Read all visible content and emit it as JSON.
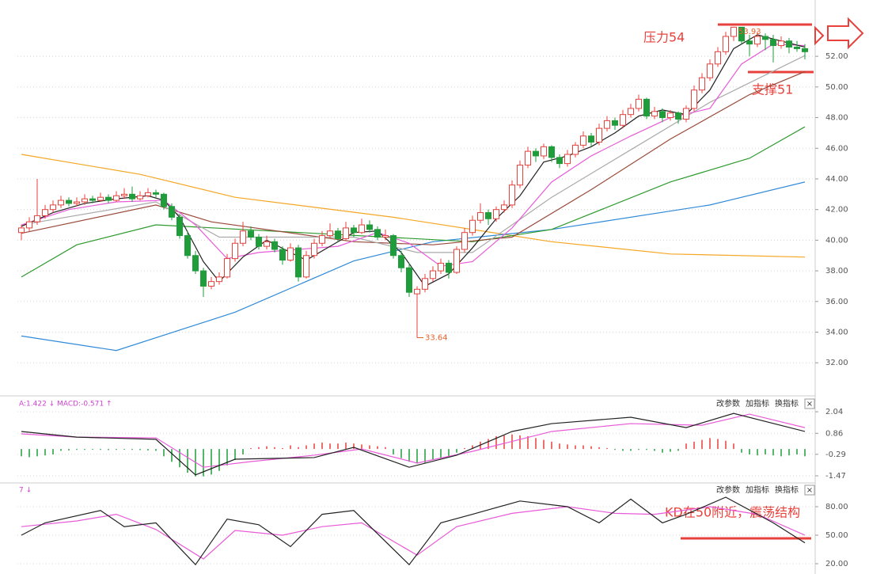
{
  "chart_data": [
    {
      "type": "candlestick",
      "up_color": "#e8413c",
      "down_color": "#1f9d3a",
      "ylim": [
        30.1,
        54.9
      ],
      "yticks": [
        {
          "value": 32,
          "label": "32.00"
        },
        {
          "value": 34,
          "label": "34.00"
        },
        {
          "value": 36,
          "label": "36.00"
        },
        {
          "value": 38,
          "label": "38.00"
        },
        {
          "value": 40,
          "label": "40.00"
        },
        {
          "value": 42,
          "label": "42.00"
        },
        {
          "value": 44,
          "label": "44.00"
        },
        {
          "value": 46,
          "label": "46.00"
        },
        {
          "value": 48,
          "label": "48.00"
        },
        {
          "value": 50,
          "label": "50.00"
        },
        {
          "value": 52,
          "label": "52.00"
        }
      ],
      "grid": true,
      "annotations": [
        "压力54",
        "支撑51"
      ],
      "high_label": "53.93",
      "low_label": "33.64",
      "candles": [
        [
          40.5,
          41.0,
          40.0,
          40.8
        ],
        [
          40.8,
          41.5,
          40.6,
          41.2
        ],
        [
          41.2,
          44.0,
          41.0,
          41.6
        ],
        [
          41.6,
          42.3,
          41.4,
          42.0
        ],
        [
          42.0,
          42.6,
          41.8,
          42.3
        ],
        [
          42.3,
          42.9,
          42.1,
          42.6
        ],
        [
          42.6,
          42.8,
          42.2,
          42.4
        ],
        [
          42.4,
          42.8,
          42.2,
          42.5
        ],
        [
          42.5,
          43.0,
          42.3,
          42.7
        ],
        [
          42.7,
          42.9,
          42.4,
          42.6
        ],
        [
          42.6,
          43.1,
          42.5,
          42.8
        ],
        [
          42.8,
          43.0,
          42.4,
          42.6
        ],
        [
          42.6,
          43.2,
          42.5,
          42.9
        ],
        [
          42.9,
          43.4,
          42.7,
          43.0
        ],
        [
          43.0,
          43.5,
          42.5,
          42.7
        ],
        [
          42.7,
          43.2,
          42.6,
          42.9
        ],
        [
          42.9,
          43.4,
          42.8,
          43.1
        ],
        [
          43.1,
          43.3,
          42.8,
          43.0
        ],
        [
          43.0,
          43.1,
          42.0,
          42.2
        ],
        [
          42.2,
          42.4,
          41.3,
          41.5
        ],
        [
          41.5,
          41.7,
          40.1,
          40.3
        ],
        [
          40.3,
          40.6,
          38.8,
          39.0
        ],
        [
          39.0,
          39.3,
          37.8,
          38.0
        ],
        [
          38.0,
          38.2,
          36.3,
          37.0
        ],
        [
          37.0,
          37.6,
          36.8,
          37.3
        ],
        [
          37.3,
          37.9,
          37.1,
          37.6
        ],
        [
          37.6,
          39.1,
          37.5,
          38.8
        ],
        [
          38.8,
          40.1,
          38.6,
          39.8
        ],
        [
          39.8,
          41.2,
          39.6,
          40.6
        ],
        [
          40.6,
          40.9,
          40.0,
          40.2
        ],
        [
          40.2,
          40.4,
          39.4,
          39.6
        ],
        [
          39.6,
          40.3,
          39.4,
          39.9
        ],
        [
          39.9,
          40.1,
          39.2,
          39.4
        ],
        [
          39.4,
          39.6,
          38.4,
          38.7
        ],
        [
          38.7,
          39.8,
          38.6,
          39.5
        ],
        [
          39.5,
          39.7,
          37.3,
          37.6
        ],
        [
          37.6,
          39.3,
          37.5,
          39.0
        ],
        [
          39.0,
          40.1,
          38.8,
          39.8
        ],
        [
          39.8,
          40.6,
          39.6,
          40.3
        ],
        [
          40.3,
          41.1,
          40.1,
          40.6
        ],
        [
          40.6,
          40.8,
          39.9,
          40.1
        ],
        [
          40.1,
          41.2,
          40.0,
          40.8
        ],
        [
          40.8,
          41.0,
          40.2,
          40.5
        ],
        [
          40.5,
          41.4,
          40.4,
          41.0
        ],
        [
          41.0,
          41.3,
          40.5,
          40.7
        ],
        [
          40.7,
          40.9,
          40.0,
          40.2
        ],
        [
          40.2,
          40.7,
          40.0,
          40.3
        ],
        [
          40.3,
          40.4,
          38.8,
          39.0
        ],
        [
          39.0,
          39.3,
          37.9,
          38.2
        ],
        [
          38.2,
          38.5,
          36.3,
          36.6
        ],
        [
          36.5,
          37.0,
          33.64,
          36.8
        ],
        [
          36.8,
          37.8,
          36.6,
          37.5
        ],
        [
          37.5,
          38.3,
          37.3,
          38.0
        ],
        [
          38.0,
          38.8,
          37.8,
          38.5
        ],
        [
          38.5,
          38.7,
          37.5,
          37.9
        ],
        [
          37.9,
          39.6,
          37.8,
          39.4
        ],
        [
          39.4,
          40.8,
          39.2,
          40.5
        ],
        [
          40.5,
          41.6,
          40.3,
          41.3
        ],
        [
          41.3,
          42.4,
          41.1,
          41.8
        ],
        [
          41.8,
          42.0,
          41.0,
          41.4
        ],
        [
          41.4,
          42.2,
          41.2,
          42.0
        ],
        [
          42.0,
          42.6,
          41.8,
          42.3
        ],
        [
          42.3,
          43.9,
          42.1,
          43.6
        ],
        [
          43.6,
          45.2,
          43.4,
          44.9
        ],
        [
          44.9,
          46.1,
          44.7,
          45.8
        ],
        [
          45.8,
          46.0,
          45.1,
          45.5
        ],
        [
          45.5,
          46.3,
          45.3,
          46.1
        ],
        [
          46.1,
          46.2,
          45.1,
          45.4
        ],
        [
          45.4,
          45.6,
          44.7,
          45.0
        ],
        [
          45.0,
          45.9,
          44.8,
          45.6
        ],
        [
          45.6,
          46.4,
          45.4,
          46.2
        ],
        [
          46.2,
          47.1,
          46.0,
          46.8
        ],
        [
          46.8,
          47.0,
          46.1,
          46.4
        ],
        [
          46.4,
          47.6,
          46.2,
          47.3
        ],
        [
          47.3,
          48.1,
          47.1,
          47.8
        ],
        [
          47.8,
          48.0,
          47.2,
          47.5
        ],
        [
          47.5,
          48.5,
          47.3,
          48.2
        ],
        [
          48.2,
          48.9,
          48.0,
          48.6
        ],
        [
          48.6,
          49.5,
          48.4,
          49.2
        ],
        [
          49.2,
          49.3,
          47.9,
          48.1
        ],
        [
          48.1,
          48.7,
          47.9,
          48.4
        ],
        [
          48.4,
          48.6,
          47.7,
          48.0
        ],
        [
          48.0,
          48.5,
          47.8,
          48.3
        ],
        [
          48.3,
          48.4,
          47.6,
          47.9
        ],
        [
          47.9,
          48.8,
          47.7,
          48.6
        ],
        [
          48.6,
          50.1,
          48.4,
          49.8
        ],
        [
          49.8,
          50.9,
          49.6,
          50.6
        ],
        [
          50.6,
          51.8,
          50.4,
          51.5
        ],
        [
          51.5,
          52.6,
          51.3,
          52.3
        ],
        [
          52.3,
          53.6,
          52.1,
          53.3
        ],
        [
          53.3,
          53.93,
          53.0,
          53.9
        ],
        [
          53.9,
          53.9,
          52.8,
          53.0
        ],
        [
          53.0,
          53.4,
          52.0,
          52.8
        ],
        [
          52.8,
          53.6,
          52.6,
          53.3
        ],
        [
          53.3,
          53.5,
          52.4,
          53.1
        ],
        [
          53.1,
          53.4,
          51.6,
          52.7
        ],
        [
          52.7,
          53.3,
          52.5,
          53.0
        ],
        [
          53.0,
          53.2,
          52.2,
          52.6
        ],
        [
          52.6,
          53.0,
          52.3,
          52.5
        ],
        [
          52.5,
          52.8,
          51.8,
          52.3
        ]
      ],
      "series": [
        {
          "color": "#f5a623",
          "x": [
            0,
            15,
            27,
            47,
            67,
            82,
            99
          ],
          "values": [
            45.6,
            44.3,
            42.8,
            41.5,
            39.9,
            39.1,
            38.9
          ]
        },
        {
          "color": "#2f8ad8",
          "x": [
            0,
            12,
            27,
            42,
            52,
            67,
            87,
            99
          ],
          "values": [
            33.75,
            32.8,
            35.3,
            38.65,
            39.9,
            40.7,
            42.3,
            43.8
          ]
        },
        {
          "color": "#2e9a2e",
          "x": [
            0,
            7,
            17,
            37,
            57,
            67,
            82,
            92,
            99
          ],
          "values": [
            37.6,
            39.7,
            41.0,
            40.45,
            39.9,
            40.7,
            43.8,
            45.35,
            47.4
          ]
        },
        {
          "color": "#9a4a3a",
          "x": [
            0,
            17,
            24,
            42,
            52,
            62,
            72,
            82,
            92,
            99
          ],
          "values": [
            40.45,
            42.3,
            41.2,
            39.9,
            39.7,
            40.2,
            43.3,
            46.6,
            49.5,
            51.0
          ]
        },
        {
          "color": "#aaaaaa",
          "x": [
            0,
            17,
            25,
            42,
            50,
            57,
            67,
            77,
            87,
            99
          ],
          "values": [
            41.0,
            42.5,
            40.2,
            40.2,
            39.2,
            39.2,
            42.8,
            45.9,
            49.0,
            52.05
          ]
        },
        {
          "color": "#e85ad8",
          "x": [
            0,
            6,
            12,
            18,
            22,
            26,
            30,
            35,
            40,
            45,
            49,
            53,
            57,
            62,
            67,
            72,
            77,
            82,
            87,
            91,
            95,
            99
          ],
          "values": [
            41.0,
            42.0,
            42.5,
            42.6,
            41.0,
            38.8,
            39.2,
            39.4,
            39.6,
            40.5,
            39.8,
            38.3,
            38.6,
            40.8,
            43.8,
            45.5,
            46.8,
            48.0,
            48.6,
            51.5,
            52.8,
            52.7
          ]
        },
        {
          "color": "#222222",
          "x": [
            0,
            4,
            8,
            12,
            16,
            18,
            20,
            23,
            25,
            28,
            31,
            34,
            36,
            39,
            42,
            45,
            48,
            51,
            54,
            57,
            60,
            63,
            66,
            69,
            72,
            75,
            78,
            81,
            84,
            87,
            90,
            93,
            96,
            99
          ],
          "values": [
            40.9,
            41.8,
            42.4,
            42.7,
            42.9,
            42.6,
            41.5,
            38.6,
            37.3,
            38.9,
            40.0,
            39.2,
            38.7,
            39.6,
            40.5,
            40.6,
            39.2,
            37.0,
            37.8,
            39.5,
            41.4,
            42.9,
            45.1,
            45.5,
            46.1,
            47.0,
            48.1,
            48.5,
            48.2,
            49.8,
            52.5,
            53.4,
            53.0,
            52.6
          ]
        }
      ]
    },
    {
      "type": "macd",
      "header": "A:1.422 ↓ MACD:-0.571 ↑",
      "buttons": [
        "改参数",
        "加指标",
        "换指标"
      ],
      "close": "×",
      "up_color": "#e8413c",
      "down_color": "#1f9d3a",
      "ylim": [
        -1.73,
        2.26
      ],
      "yticks": [
        2.04,
        0.86,
        -0.29,
        -1.47
      ],
      "histogram": [
        -0.4,
        -0.45,
        -0.4,
        -0.35,
        -0.3,
        -0.1,
        -0.08,
        -0.05,
        -0.05,
        -0.04,
        -0.05,
        -0.06,
        -0.05,
        -0.04,
        -0.05,
        -0.06,
        -0.08,
        -0.1,
        -0.4,
        -0.7,
        -1.0,
        -1.3,
        -1.5,
        -1.5,
        -1.4,
        -1.2,
        -0.9,
        -0.6,
        -0.3,
        0.05,
        0.1,
        0.15,
        0.1,
        0.05,
        0.2,
        0.1,
        0.2,
        0.3,
        0.35,
        0.3,
        0.3,
        0.35,
        0.3,
        0.25,
        0.2,
        0.15,
        0.1,
        -0.3,
        -0.5,
        -0.7,
        -0.8,
        -0.75,
        -0.6,
        -0.5,
        -0.4,
        -0.2,
        0.05,
        0.2,
        0.4,
        0.55,
        0.7,
        0.75,
        0.8,
        0.75,
        0.7,
        0.6,
        0.5,
        0.4,
        0.3,
        0.25,
        0.2,
        0.2,
        0.15,
        0.1,
        0.05,
        -0.05,
        -0.1,
        -0.1,
        -0.05,
        -0.05,
        -0.1,
        -0.2,
        -0.15,
        -0.1,
        0.3,
        0.4,
        0.5,
        0.6,
        0.55,
        0.45,
        0.3,
        -0.2,
        -0.3,
        -0.35,
        -0.3,
        -0.35,
        -0.4,
        -0.35,
        -0.3,
        -0.4
      ],
      "series": [
        {
          "color": "#e85ad8",
          "x": [
            0,
            7,
            17,
            23,
            29,
            37,
            43,
            50,
            57,
            67,
            77,
            86,
            92,
            99
          ],
          "values": [
            0.83,
            0.65,
            0.61,
            -1.0,
            -0.69,
            -0.34,
            0.0,
            -0.77,
            -0.13,
            0.96,
            1.39,
            1.3,
            1.91,
            1.17
          ]
        },
        {
          "color": "#222222",
          "x": [
            0,
            7,
            17,
            22,
            27,
            37,
            42,
            49,
            55,
            62,
            67,
            77,
            84,
            90,
            99
          ],
          "values": [
            0.96,
            0.65,
            0.53,
            -1.42,
            -0.56,
            -0.47,
            0.09,
            -1.0,
            -0.34,
            0.96,
            1.39,
            1.74,
            1.17,
            1.95,
            0.96
          ]
        }
      ]
    },
    {
      "type": "kd",
      "header": "7 ↓",
      "buttons": [
        "改参数",
        "加指标",
        "换指标"
      ],
      "close": "×",
      "annotations": [
        "KD在50附近，震荡结构"
      ],
      "ylim": [
        15,
        92.5
      ],
      "yticks": [
        {
          "value": 80,
          "label": "80.00"
        },
        {
          "value": 50,
          "label": "50.00"
        },
        {
          "value": 20,
          "label": "20.00"
        }
      ],
      "series": [
        {
          "color": "#e85ad8",
          "x": [
            0,
            7,
            12,
            17,
            23,
            27,
            33,
            38,
            43,
            50,
            55,
            62,
            69,
            75,
            80,
            87,
            93,
            99
          ],
          "values": [
            59,
            65,
            72,
            56,
            25,
            55,
            50,
            59,
            63,
            29,
            59,
            73,
            80,
            73,
            72,
            80,
            72,
            50
          ]
        },
        {
          "color": "#222222",
          "x": [
            0,
            3,
            10,
            13,
            17,
            22,
            26,
            30,
            34,
            38,
            42,
            49,
            53,
            57,
            63,
            69,
            73,
            77,
            81,
            84,
            89,
            95,
            99
          ],
          "values": [
            50,
            63,
            76,
            59,
            63,
            19,
            67,
            61,
            38,
            72,
            76,
            19,
            63,
            72,
            86,
            80,
            63,
            88,
            63,
            72,
            90,
            63,
            42
          ]
        }
      ]
    }
  ]
}
